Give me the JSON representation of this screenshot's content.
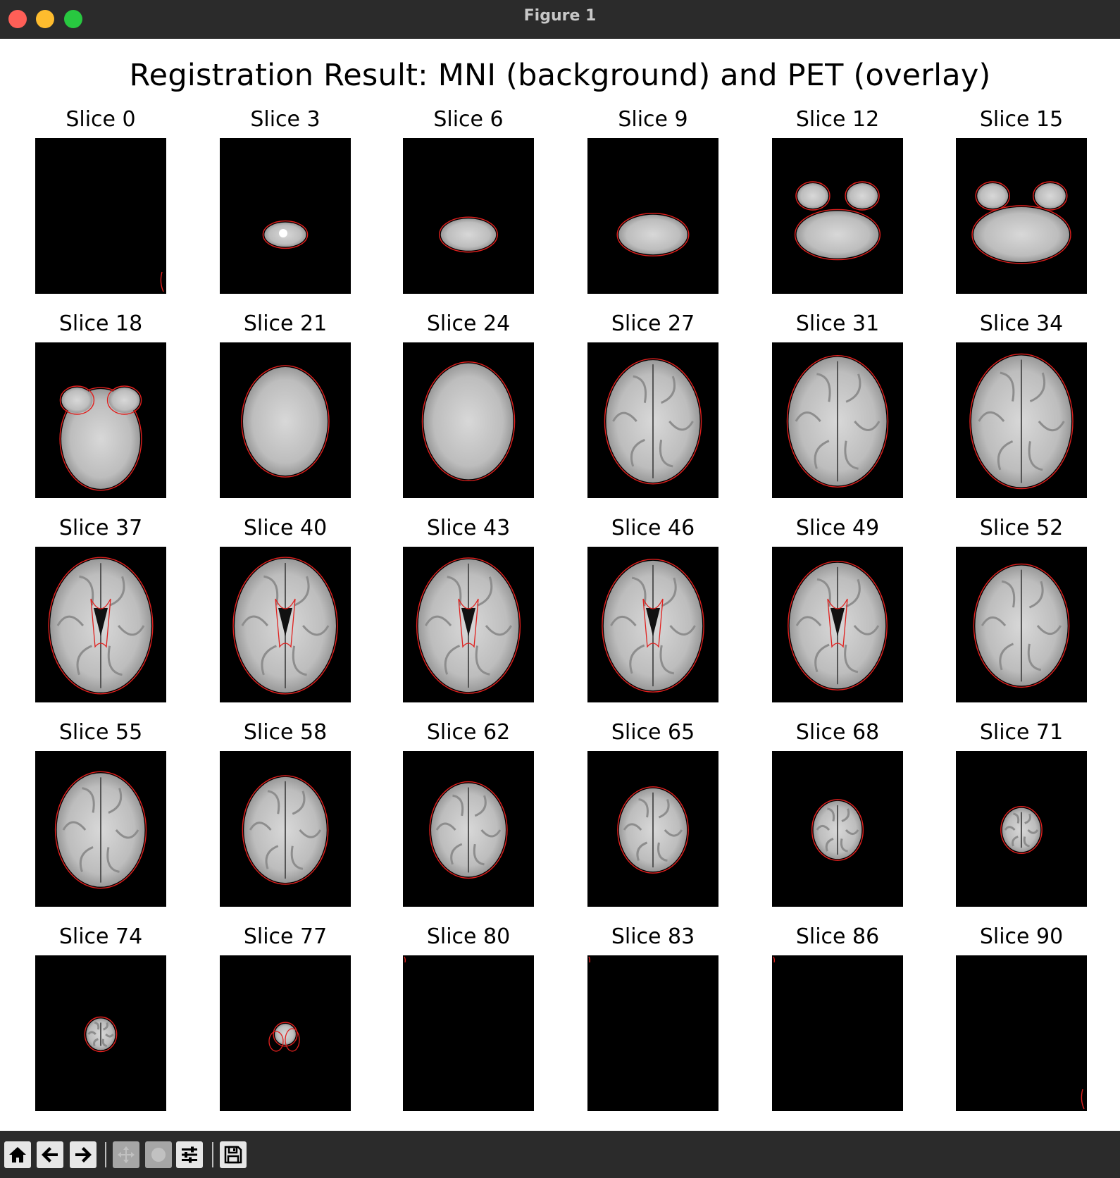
{
  "window": {
    "title": "Figure 1"
  },
  "figure": {
    "title": "Registration Result: MNI (background) and PET (overlay)",
    "slices": [
      {
        "label": "Slice 0",
        "index": 0
      },
      {
        "label": "Slice 3",
        "index": 3
      },
      {
        "label": "Slice 6",
        "index": 6
      },
      {
        "label": "Slice 9",
        "index": 9
      },
      {
        "label": "Slice 12",
        "index": 12
      },
      {
        "label": "Slice 15",
        "index": 15
      },
      {
        "label": "Slice 18",
        "index": 18
      },
      {
        "label": "Slice 21",
        "index": 21
      },
      {
        "label": "Slice 24",
        "index": 24
      },
      {
        "label": "Slice 27",
        "index": 27
      },
      {
        "label": "Slice 31",
        "index": 31
      },
      {
        "label": "Slice 34",
        "index": 34
      },
      {
        "label": "Slice 37",
        "index": 37
      },
      {
        "label": "Slice 40",
        "index": 40
      },
      {
        "label": "Slice 43",
        "index": 43
      },
      {
        "label": "Slice 46",
        "index": 46
      },
      {
        "label": "Slice 49",
        "index": 49
      },
      {
        "label": "Slice 52",
        "index": 52
      },
      {
        "label": "Slice 55",
        "index": 55
      },
      {
        "label": "Slice 58",
        "index": 58
      },
      {
        "label": "Slice 62",
        "index": 62
      },
      {
        "label": "Slice 65",
        "index": 65
      },
      {
        "label": "Slice 68",
        "index": 68
      },
      {
        "label": "Slice 71",
        "index": 71
      },
      {
        "label": "Slice 74",
        "index": 74
      },
      {
        "label": "Slice 77",
        "index": 77
      },
      {
        "label": "Slice 80",
        "index": 80
      },
      {
        "label": "Slice 83",
        "index": 83
      },
      {
        "label": "Slice 86",
        "index": 86
      },
      {
        "label": "Slice 90",
        "index": 90
      }
    ],
    "colors": {
      "overlay_contour": "#e0201e",
      "background": "#000000"
    }
  },
  "toolbar": {
    "buttons": [
      {
        "name": "home-button",
        "icon": "home-icon"
      },
      {
        "name": "back-button",
        "icon": "arrow-left-icon"
      },
      {
        "name": "forward-button",
        "icon": "arrow-right-icon"
      },
      {
        "name": "pan-button",
        "icon": "move-icon"
      },
      {
        "name": "zoom-button",
        "icon": "zoom-rect-icon"
      },
      {
        "name": "configure-subplots-button",
        "icon": "sliders-icon"
      },
      {
        "name": "save-button",
        "icon": "floppy-icon"
      }
    ]
  }
}
